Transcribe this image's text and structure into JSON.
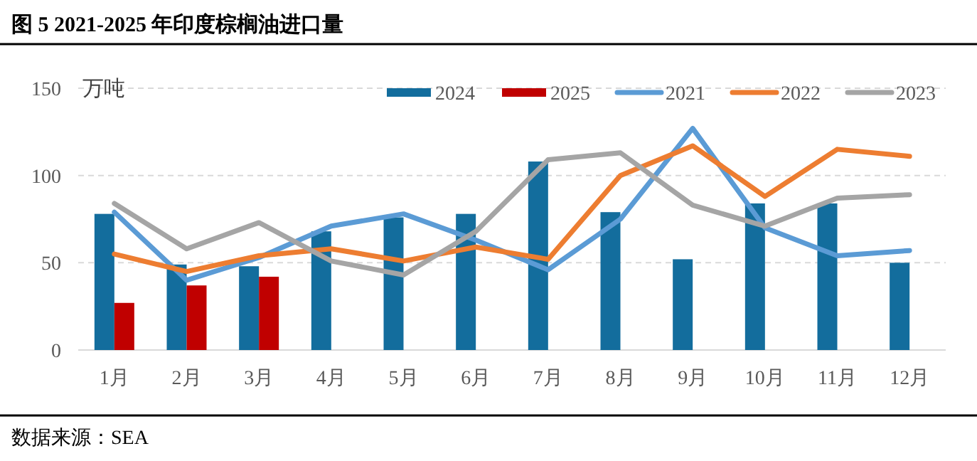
{
  "chart_data": {
    "type": "bar",
    "title": "图 5 2021-2025 年印度棕榈油进口量",
    "ylabel": "万吨",
    "categories": [
      "1月",
      "2月",
      "3月",
      "4月",
      "5月",
      "6月",
      "7月",
      "8月",
      "9月",
      "10月",
      "11月",
      "12月"
    ],
    "series": [
      {
        "name": "2024",
        "color": "#136d9d",
        "values": [
          78,
          49,
          48,
          68,
          76,
          78,
          108,
          79,
          52,
          84,
          84,
          50
        ]
      },
      {
        "name": "2025",
        "color": "#c00000",
        "values": [
          27,
          37,
          42,
          null,
          null,
          null,
          null,
          null,
          null,
          null,
          null,
          null
        ]
      },
      {
        "name": "2021",
        "type": "line",
        "color": "#5b9bd5",
        "values": [
          79,
          40,
          53,
          71,
          78,
          63,
          46,
          75,
          127,
          70,
          54,
          57
        ]
      },
      {
        "name": "2022",
        "type": "line",
        "color": "#ed7d31",
        "values": [
          55,
          45,
          54,
          58,
          51,
          59,
          52,
          100,
          117,
          88,
          115,
          111
        ]
      },
      {
        "name": "2023",
        "type": "line",
        "color": "#a5a5a5",
        "values": [
          84,
          58,
          73,
          51,
          43,
          68,
          109,
          113,
          83,
          71,
          87,
          89
        ]
      }
    ],
    "ylim": [
      0,
      150
    ],
    "yticks": [
      0,
      50,
      100,
      150
    ],
    "grid": "y",
    "legend": "top right",
    "annotations": [
      "数据来源：SEA"
    ]
  }
}
